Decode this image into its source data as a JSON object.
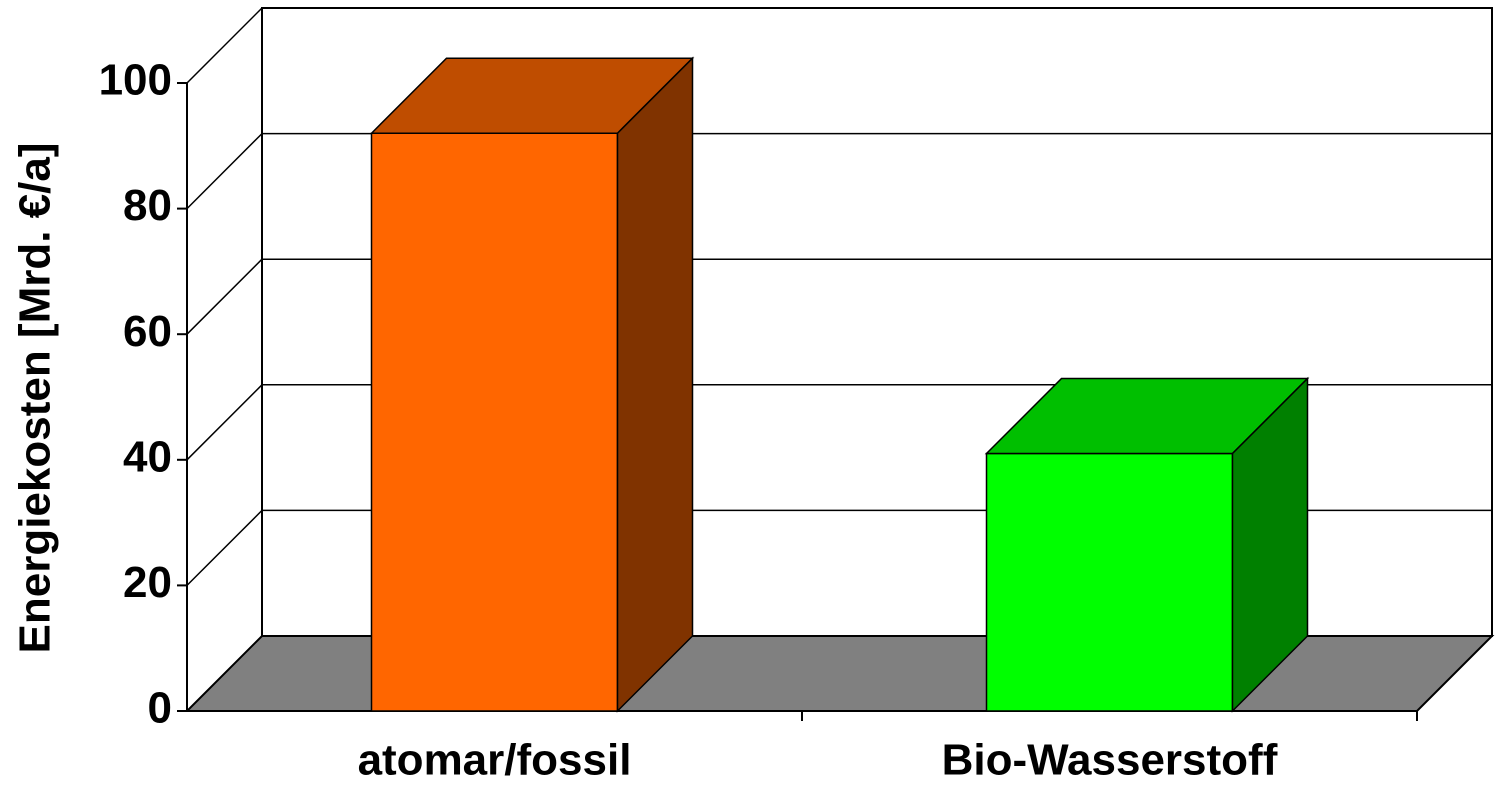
{
  "chart_data": {
    "type": "bar3d",
    "y_label": "Energiekosten [Mrd. €/a]",
    "categories": [
      "atomar/fossil",
      "Bio-Wasserstoff"
    ],
    "values": [
      92,
      41
    ],
    "colors": [
      "#ff6600",
      "#00ff00"
    ],
    "ylim": [
      0,
      100
    ],
    "yticks": [
      0,
      20,
      40,
      60,
      80,
      100
    ],
    "grid": true
  }
}
